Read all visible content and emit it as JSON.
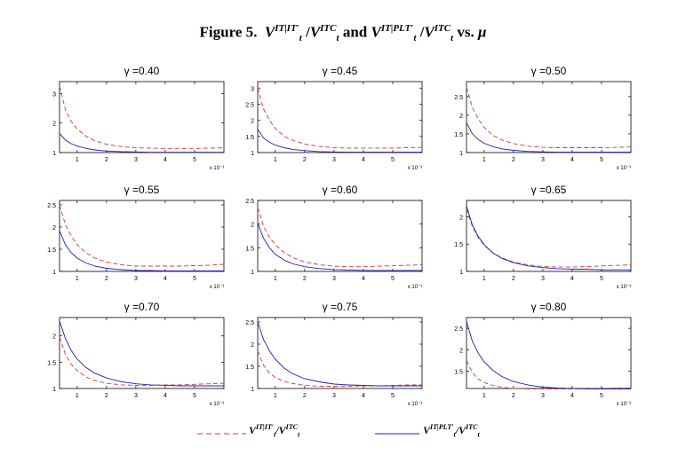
{
  "figure": {
    "label": "Figure 5.",
    "title_var": "V",
    "title_sub": "t",
    "sup_it_it": "IT|IT′",
    "sup_itc": "ITC",
    "sup_it_plt": "IT|PLT′",
    "conj": "and",
    "vs": "vs.",
    "mu": "μ"
  },
  "legend": {
    "dashed_label": {
      "num_sup": "IT|IT′",
      "den_sup": "ITC",
      "var": "V",
      "sub": "t",
      "slash": "/"
    },
    "solid_label": {
      "num_sup": "IT|PLT′",
      "den_sup": "ITC",
      "var": "V",
      "sub": "t",
      "slash": "/"
    }
  },
  "colors": {
    "dashed": "#d43a3a",
    "solid": "#1f1fb0",
    "axis": "#000000"
  },
  "chart_data": [
    {
      "type": "line",
      "title": "γ =0.40",
      "xlim": [
        0.0004,
        0.006
      ],
      "ylim": [
        1,
        3.4
      ],
      "yticks": [
        1,
        2,
        3
      ],
      "xticks": [
        1,
        2,
        3,
        4,
        5
      ],
      "x_multiplier": "x 10⁻³",
      "series": [
        {
          "style": "dashed",
          "x": [
            0.4,
            0.6,
            0.8,
            1,
            1.3,
            1.6,
            2,
            2.5,
            3,
            3.5,
            4,
            4.5,
            5,
            5.5,
            6
          ],
          "y": [
            3.25,
            2.45,
            2.05,
            1.8,
            1.55,
            1.4,
            1.28,
            1.2,
            1.16,
            1.15,
            1.14,
            1.14,
            1.14,
            1.15,
            1.16
          ]
        },
        {
          "style": "solid",
          "x": [
            0.4,
            0.6,
            0.8,
            1,
            1.3,
            1.6,
            2,
            2.5,
            3,
            3.5,
            4,
            4.5,
            5,
            5.5,
            6
          ],
          "y": [
            1.65,
            1.42,
            1.3,
            1.22,
            1.14,
            1.09,
            1.05,
            1.03,
            1.02,
            1.01,
            1.01,
            1.01,
            1.01,
            1.01,
            1.01
          ]
        }
      ]
    },
    {
      "type": "line",
      "title": "γ =0.45",
      "xlim": [
        0.0004,
        0.006
      ],
      "ylim": [
        1,
        3.2
      ],
      "yticks": [
        1,
        1.5,
        2,
        2.5,
        3
      ],
      "xticks": [
        1,
        2,
        3,
        4,
        5
      ],
      "x_multiplier": "x 10⁻³",
      "series": [
        {
          "style": "dashed",
          "x": [
            0.4,
            0.6,
            0.8,
            1,
            1.3,
            1.6,
            2,
            2.5,
            3,
            3.5,
            4,
            4.5,
            5,
            5.5,
            6
          ],
          "y": [
            3.0,
            2.35,
            2.0,
            1.75,
            1.5,
            1.38,
            1.26,
            1.19,
            1.15,
            1.14,
            1.14,
            1.14,
            1.14,
            1.15,
            1.16
          ]
        },
        {
          "style": "solid",
          "x": [
            0.4,
            0.6,
            0.8,
            1,
            1.3,
            1.6,
            2,
            2.5,
            3,
            3.5,
            4,
            4.5,
            5,
            5.5,
            6
          ],
          "y": [
            1.72,
            1.45,
            1.32,
            1.23,
            1.15,
            1.1,
            1.06,
            1.03,
            1.02,
            1.01,
            1.01,
            1.01,
            1.01,
            1.01,
            1.01
          ]
        }
      ]
    },
    {
      "type": "line",
      "title": "γ =0.50",
      "xlim": [
        0.0004,
        0.006
      ],
      "ylim": [
        1,
        2.9
      ],
      "yticks": [
        1,
        1.5,
        2,
        2.5
      ],
      "xticks": [
        1,
        2,
        3,
        4,
        5
      ],
      "x_multiplier": "x 10⁻³",
      "series": [
        {
          "style": "dashed",
          "x": [
            0.4,
            0.6,
            0.8,
            1,
            1.3,
            1.6,
            2,
            2.5,
            3,
            3.5,
            4,
            4.5,
            5,
            5.5,
            6
          ],
          "y": [
            2.75,
            2.2,
            1.9,
            1.68,
            1.46,
            1.34,
            1.24,
            1.17,
            1.14,
            1.13,
            1.13,
            1.13,
            1.13,
            1.14,
            1.15
          ]
        },
        {
          "style": "solid",
          "x": [
            0.4,
            0.6,
            0.8,
            1,
            1.3,
            1.6,
            2,
            2.5,
            3,
            3.5,
            4,
            4.5,
            5,
            5.5,
            6
          ],
          "y": [
            1.8,
            1.5,
            1.35,
            1.25,
            1.16,
            1.1,
            1.06,
            1.03,
            1.02,
            1.01,
            1.01,
            1.01,
            1.01,
            1.01,
            1.01
          ]
        }
      ]
    },
    {
      "type": "line",
      "title": "γ =0.55",
      "xlim": [
        0.0004,
        0.006
      ],
      "ylim": [
        1,
        2.6
      ],
      "yticks": [
        1,
        1.5,
        2,
        2.5
      ],
      "xticks": [
        1,
        2,
        3,
        4,
        5
      ],
      "x_multiplier": "x 10⁻³",
      "series": [
        {
          "style": "dashed",
          "x": [
            0.4,
            0.6,
            0.8,
            1,
            1.3,
            1.6,
            2,
            2.5,
            3,
            3.5,
            4,
            4.5,
            5,
            5.5,
            6
          ],
          "y": [
            2.5,
            2.05,
            1.8,
            1.6,
            1.42,
            1.3,
            1.21,
            1.15,
            1.12,
            1.12,
            1.12,
            1.12,
            1.13,
            1.14,
            1.16
          ]
        },
        {
          "style": "solid",
          "x": [
            0.4,
            0.6,
            0.8,
            1,
            1.3,
            1.6,
            2,
            2.5,
            3,
            3.5,
            4,
            4.5,
            5,
            5.5,
            6
          ],
          "y": [
            1.92,
            1.6,
            1.42,
            1.3,
            1.19,
            1.12,
            1.07,
            1.04,
            1.02,
            1.02,
            1.01,
            1.01,
            1.01,
            1.01,
            1.01
          ]
        }
      ]
    },
    {
      "type": "line",
      "title": "γ =0.60",
      "xlim": [
        0.0004,
        0.006
      ],
      "ylim": [
        1,
        2.5
      ],
      "yticks": [
        1,
        1.5,
        2,
        2.5
      ],
      "xticks": [
        1,
        2,
        3,
        4,
        5
      ],
      "x_multiplier": "x 10⁻³",
      "series": [
        {
          "style": "dashed",
          "x": [
            0.4,
            0.6,
            0.8,
            1,
            1.3,
            1.6,
            2,
            2.5,
            3,
            3.5,
            4,
            4.5,
            5,
            5.5,
            6
          ],
          "y": [
            2.35,
            1.95,
            1.72,
            1.56,
            1.4,
            1.29,
            1.2,
            1.14,
            1.11,
            1.1,
            1.1,
            1.11,
            1.12,
            1.13,
            1.14
          ]
        },
        {
          "style": "solid",
          "x": [
            0.4,
            0.6,
            0.8,
            1,
            1.3,
            1.6,
            2,
            2.5,
            3,
            3.5,
            4,
            4.5,
            5,
            5.5,
            6
          ],
          "y": [
            2.02,
            1.7,
            1.5,
            1.36,
            1.24,
            1.16,
            1.1,
            1.06,
            1.04,
            1.03,
            1.02,
            1.02,
            1.02,
            1.02,
            1.02
          ]
        }
      ]
    },
    {
      "type": "line",
      "title": "γ =0.65",
      "xlim": [
        0.0004,
        0.006
      ],
      "ylim": [
        1,
        2.3
      ],
      "yticks": [
        1,
        1.5,
        2
      ],
      "xticks": [
        1,
        2,
        3,
        4,
        5
      ],
      "x_multiplier": "x 10⁻³",
      "series": [
        {
          "style": "dashed",
          "x": [
            0.4,
            0.6,
            0.8,
            1,
            1.3,
            1.6,
            2,
            2.5,
            3,
            3.5,
            4,
            4.5,
            5,
            5.5,
            6
          ],
          "y": [
            2.15,
            1.82,
            1.62,
            1.48,
            1.34,
            1.25,
            1.17,
            1.12,
            1.09,
            1.08,
            1.08,
            1.09,
            1.1,
            1.11,
            1.12
          ]
        },
        {
          "style": "solid",
          "x": [
            0.4,
            0.6,
            0.8,
            1,
            1.3,
            1.6,
            2,
            2.5,
            3,
            3.5,
            4,
            4.5,
            5,
            5.5,
            6
          ],
          "y": [
            2.2,
            1.85,
            1.64,
            1.49,
            1.34,
            1.24,
            1.16,
            1.1,
            1.07,
            1.05,
            1.04,
            1.04,
            1.03,
            1.03,
            1.03
          ]
        }
      ]
    },
    {
      "type": "line",
      "title": "γ =0.70",
      "xlim": [
        0.0004,
        0.006
      ],
      "ylim": [
        1,
        2.35
      ],
      "yticks": [
        1,
        1.5,
        2
      ],
      "xticks": [
        1,
        2,
        3,
        4,
        5
      ],
      "x_multiplier": "x 10⁻³",
      "series": [
        {
          "style": "dashed",
          "x": [
            0.4,
            0.6,
            0.8,
            1,
            1.3,
            1.6,
            2,
            2.5,
            3,
            3.5,
            4,
            4.5,
            5,
            5.5,
            6
          ],
          "y": [
            1.98,
            1.65,
            1.46,
            1.34,
            1.22,
            1.15,
            1.1,
            1.07,
            1.06,
            1.06,
            1.07,
            1.07,
            1.08,
            1.09,
            1.1
          ]
        },
        {
          "style": "solid",
          "x": [
            0.4,
            0.6,
            0.8,
            1,
            1.3,
            1.6,
            2,
            2.5,
            3,
            3.5,
            4,
            4.5,
            5,
            5.5,
            6
          ],
          "y": [
            2.28,
            1.95,
            1.72,
            1.56,
            1.4,
            1.29,
            1.2,
            1.13,
            1.09,
            1.07,
            1.06,
            1.05,
            1.05,
            1.05,
            1.05
          ]
        }
      ]
    },
    {
      "type": "line",
      "title": "γ =0.75",
      "xlim": [
        0.0004,
        0.006
      ],
      "ylim": [
        1,
        2.6
      ],
      "yticks": [
        1,
        1.5,
        2,
        2.5
      ],
      "xticks": [
        1,
        2,
        3,
        4,
        5
      ],
      "x_multiplier": "x 10⁻³",
      "series": [
        {
          "style": "dashed",
          "x": [
            0.4,
            0.6,
            0.8,
            1,
            1.3,
            1.6,
            2,
            2.5,
            3,
            3.5,
            4,
            4.5,
            5,
            5.5,
            6
          ],
          "y": [
            1.85,
            1.52,
            1.35,
            1.25,
            1.16,
            1.11,
            1.07,
            1.05,
            1.05,
            1.05,
            1.06,
            1.06,
            1.07,
            1.08,
            1.08
          ]
        },
        {
          "style": "solid",
          "x": [
            0.4,
            0.6,
            0.8,
            1,
            1.3,
            1.6,
            2,
            2.5,
            3,
            3.5,
            4,
            4.5,
            5,
            5.5,
            6
          ],
          "y": [
            2.5,
            2.1,
            1.85,
            1.66,
            1.46,
            1.33,
            1.22,
            1.15,
            1.1,
            1.08,
            1.07,
            1.06,
            1.06,
            1.06,
            1.06
          ]
        }
      ]
    },
    {
      "type": "line",
      "title": "γ =0.80",
      "xlim": [
        0.0004,
        0.006
      ],
      "ylim": [
        1.1,
        2.75
      ],
      "yticks": [
        1.5,
        2,
        2.5
      ],
      "xticks": [
        1,
        2,
        3,
        4,
        5
      ],
      "x_multiplier": "x 10⁻³",
      "series": [
        {
          "style": "dashed",
          "x": [
            0.4,
            0.6,
            0.8,
            1,
            1.3,
            1.6,
            2,
            2.5,
            3,
            3.5,
            4,
            4.5,
            5,
            5.5,
            6
          ],
          "y": [
            1.75,
            1.47,
            1.32,
            1.24,
            1.17,
            1.13,
            1.1,
            1.09,
            1.09,
            1.09,
            1.09,
            1.1,
            1.1,
            1.11,
            1.11
          ]
        },
        {
          "style": "solid",
          "x": [
            0.4,
            0.6,
            0.8,
            1,
            1.3,
            1.6,
            2,
            2.5,
            3,
            3.5,
            4,
            4.5,
            5,
            5.5,
            6
          ],
          "y": [
            2.65,
            2.2,
            1.92,
            1.72,
            1.52,
            1.38,
            1.26,
            1.18,
            1.13,
            1.11,
            1.1,
            1.09,
            1.09,
            1.09,
            1.09
          ]
        }
      ]
    }
  ]
}
